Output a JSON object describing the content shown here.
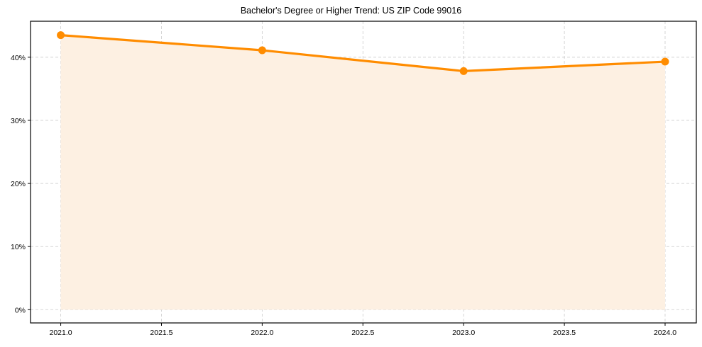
{
  "chart_data": {
    "type": "line",
    "title": "Bachelor's Degree or Higher Trend: US ZIP Code 99016",
    "xlabel": "",
    "ylabel": "",
    "x": [
      2021,
      2022,
      2023,
      2024
    ],
    "series": [
      {
        "name": "Bachelor's Degree or Higher",
        "values": [
          43.5,
          41.1,
          37.8,
          39.3
        ],
        "color": "#ff8c00",
        "fill": "area",
        "fill_color": "#fdf0e2",
        "marker": "circle"
      }
    ],
    "xlim": [
      2020.85,
      2024.155
    ],
    "ylim": [
      -2.1,
      45.7
    ],
    "x_ticks": [
      "2021.0",
      "2021.5",
      "2022.0",
      "2022.5",
      "2023.0",
      "2023.5",
      "2024.0"
    ],
    "x_tick_values": [
      2021.0,
      2021.5,
      2022.0,
      2022.5,
      2023.0,
      2023.5,
      2024.0
    ],
    "y_ticks": [
      "0%",
      "10%",
      "20%",
      "30%",
      "40%"
    ],
    "y_tick_values": [
      0,
      10,
      20,
      30,
      40
    ],
    "grid": true,
    "grid_style": "dashed",
    "legend": null
  },
  "colors": {
    "line": "#ff8c00",
    "fill": "#fdf0e2",
    "grid": "#cccccc",
    "axis": "#000000"
  }
}
